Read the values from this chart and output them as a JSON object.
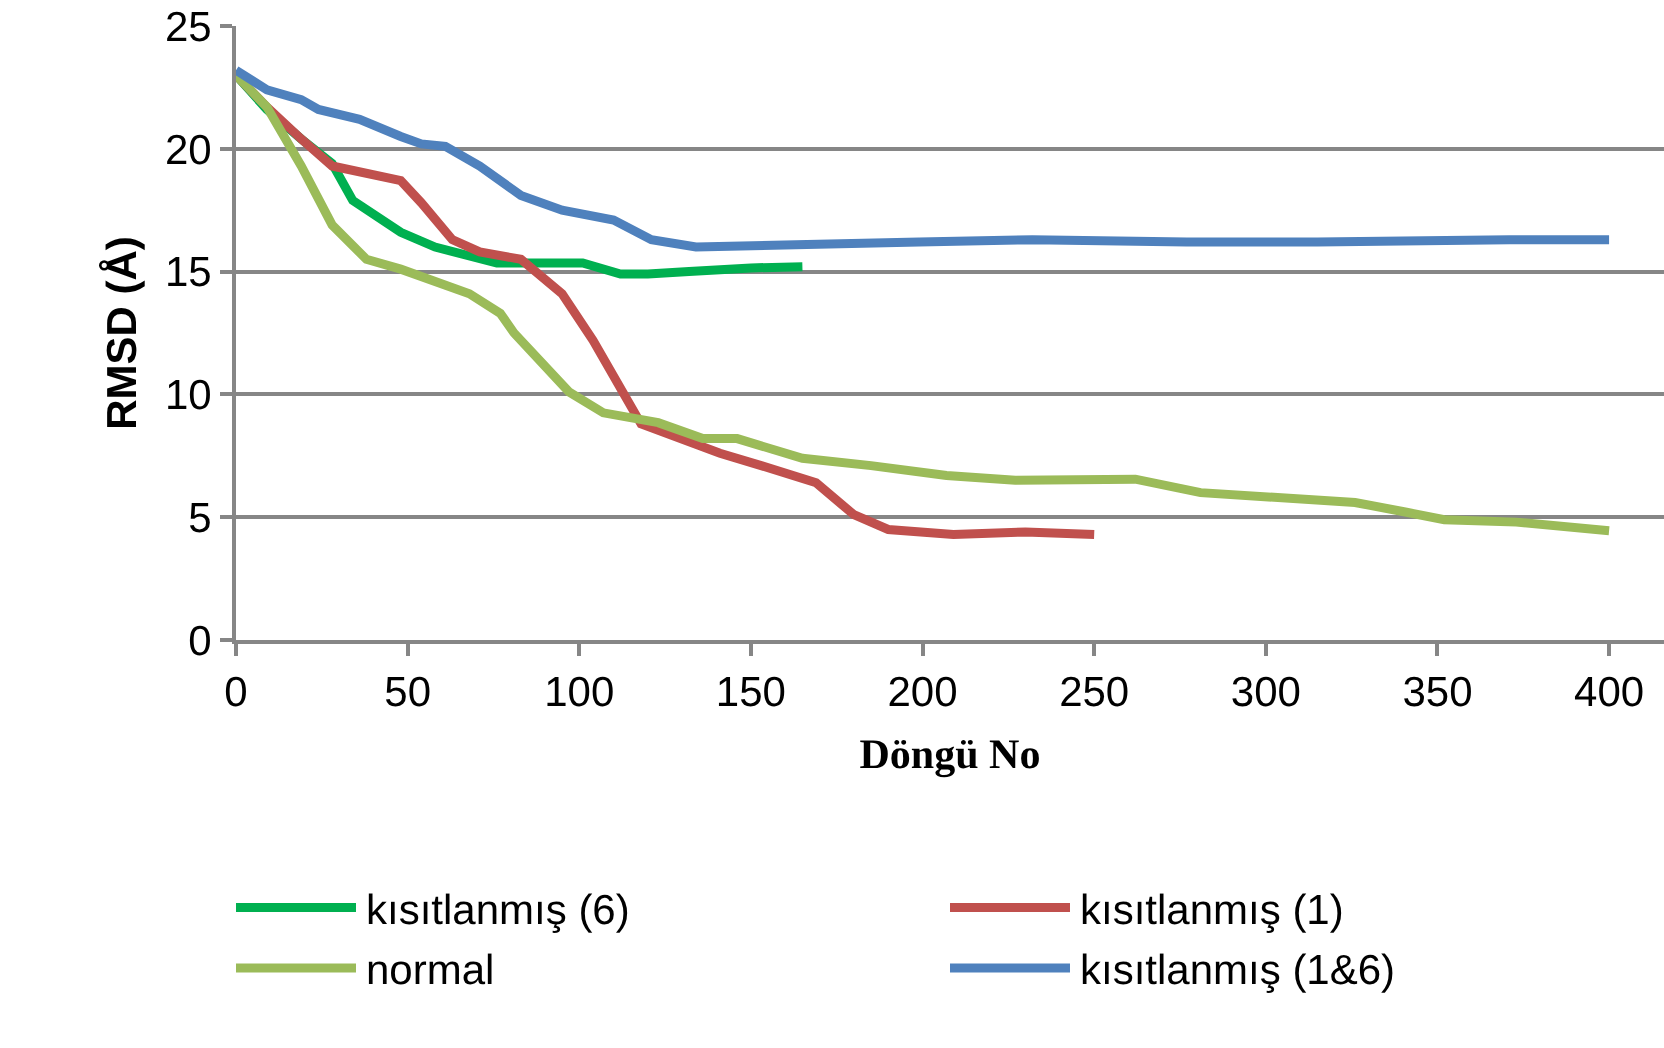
{
  "chart_data": {
    "type": "line",
    "xlabel": "Döngü No",
    "ylabel": "RMSD (Å)",
    "xlim": [
      0,
      416
    ],
    "xticks": [
      0,
      50,
      100,
      150,
      200,
      250,
      300,
      350,
      400
    ],
    "ylim": [
      0,
      25
    ],
    "yticks": [
      0,
      5,
      10,
      15,
      20,
      25
    ],
    "grid": "y",
    "legend": "bottom",
    "marker": "none",
    "line_style": "solid",
    "series": [
      {
        "name": "kısıtlanmış (6)",
        "color": "#00b050",
        "x": [
          0,
          9,
          19,
          28,
          34,
          48,
          58,
          76,
          101,
          112,
          120,
          132,
          150,
          165
        ],
        "values": [
          23.0,
          21.6,
          20.4,
          19.4,
          17.9,
          16.6,
          16.0,
          15.35,
          15.35,
          14.9,
          14.9,
          15.0,
          15.15,
          15.2
        ]
      },
      {
        "name": "kısıtlanmış (1)",
        "color": "#c0504d",
        "x": [
          0,
          9,
          19,
          28,
          48,
          54,
          63,
          71,
          83,
          95,
          104,
          118,
          141,
          153,
          169,
          180,
          190,
          209,
          230,
          250
        ],
        "values": [
          23.0,
          21.7,
          20.4,
          19.3,
          18.7,
          17.8,
          16.3,
          15.8,
          15.5,
          14.1,
          12.2,
          8.8,
          7.6,
          7.1,
          6.4,
          5.1,
          4.5,
          4.3,
          4.4,
          4.3
        ]
      },
      {
        "name": "normal",
        "color": "#9bbb59",
        "x": [
          0,
          9,
          19,
          28,
          38,
          48,
          68,
          77,
          81,
          97,
          107,
          123,
          136,
          146,
          165,
          185,
          207,
          227,
          262,
          281,
          326,
          341,
          352,
          373,
          400
        ],
        "values": [
          23.0,
          21.7,
          19.3,
          16.9,
          15.5,
          15.1,
          14.1,
          13.3,
          12.5,
          10.1,
          9.25,
          8.85,
          8.2,
          8.2,
          7.4,
          7.1,
          6.7,
          6.5,
          6.55,
          6.0,
          5.6,
          5.2,
          4.9,
          4.8,
          4.45
        ]
      },
      {
        "name": "kısıtlanmış (1&6)",
        "color": "#4f81bd",
        "x": [
          0,
          9,
          19,
          24,
          36,
          48,
          54,
          61,
          71,
          83,
          95,
          110,
          121,
          134,
          199,
          232,
          277,
          315,
          371,
          400
        ],
        "values": [
          23.2,
          22.4,
          22.0,
          21.6,
          21.2,
          20.5,
          20.2,
          20.1,
          19.3,
          18.1,
          17.5,
          17.1,
          16.3,
          16.0,
          16.2,
          16.3,
          16.2,
          16.2,
          16.3,
          16.3
        ]
      }
    ]
  }
}
